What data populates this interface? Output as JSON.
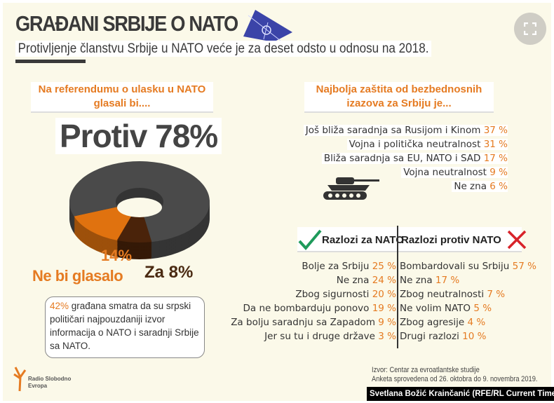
{
  "header": {
    "title": "GRAĐANI SRBIJE O NATO",
    "subtitle": "Protivljenje članstvu Srbije u NATO veće je za deset odsto u odnosu na 2018.",
    "expand_icon": "fullscreen-icon"
  },
  "referendum": {
    "heading_line1": "Na referendumu o ulasku u NATO",
    "heading_line2": "glasali bi....",
    "headline": "Protiv 78%",
    "label_ne_bi_pct": "14%",
    "label_ne_bi": "Ne bi glasalo",
    "label_za": "Za 8%"
  },
  "chart_data": {
    "type": "pie",
    "categories": [
      "Protiv",
      "Ne bi glasalo",
      "Za"
    ],
    "values": [
      78,
      14,
      8
    ],
    "colors": [
      "#4a4a4a",
      "#e0720f",
      "#4a230a"
    ],
    "style": "3d-donut"
  },
  "info_box": {
    "pct": "42%",
    "text": " građana smatra da su srpski političari najpouzdaniji izvor informacija o NATO i saradnji Srbije sa NATO."
  },
  "security": {
    "heading_line1": "Najbolja zaštita od bezbednosnih",
    "heading_line2": "izazova za Srbiju je...",
    "items": [
      {
        "label": "Još bliža saradnja sa Rusijom i Kinom",
        "value": "37 %"
      },
      {
        "label": "Vojna i politička neutralnost",
        "value": "31 %"
      },
      {
        "label": "Bliža saradnja sa EU, NATO i SAD",
        "value": "17 %"
      },
      {
        "label": "Vojna neutralnost",
        "value": "9 %"
      },
      {
        "label": "Ne zna",
        "value": "6 %"
      }
    ]
  },
  "reasons": {
    "pro_heading": "Razlozi za NATO",
    "con_heading": "Razlozi protiv NATO",
    "pro": [
      {
        "label": "Bolje za Srbiju",
        "value": "25 %"
      },
      {
        "label": "Ne zna",
        "value": "24 %"
      },
      {
        "label": "Zbog sigurnosti",
        "value": "20 %"
      },
      {
        "label": "Da ne bombarduju ponovo",
        "value": "19 %"
      },
      {
        "label": "Za bolju saradnju sa Zapadom",
        "value": "9 %"
      },
      {
        "label": "Jer su tu i druge države",
        "value": "3 %"
      }
    ],
    "con": [
      {
        "label": "Bombardovali su Srbiju",
        "value": "57 %"
      },
      {
        "label": "Ne zna",
        "value": "17 %"
      },
      {
        "label": "Zbog neutralnosti",
        "value": "7 %"
      },
      {
        "label": "Ne volim NATO",
        "value": "5 %"
      },
      {
        "label": "Zbog agresije",
        "value": "4 %"
      },
      {
        "label": "Drugi razlozi",
        "value": "10 %"
      }
    ]
  },
  "footer": {
    "logo_line1": "Radio Slobodno",
    "logo_line2": "Evropa",
    "source": "Izvor: Centar za evroatlantske studije",
    "source2": "Anketa sprovedena od 26. oktobra do 9. novembra 2019.",
    "credit": "Svetlana Božić Krainčanić (RFE/RL Current Time)"
  },
  "colors": {
    "accent": "#e57b22",
    "text": "#333333",
    "background": "#fbf9e9"
  }
}
